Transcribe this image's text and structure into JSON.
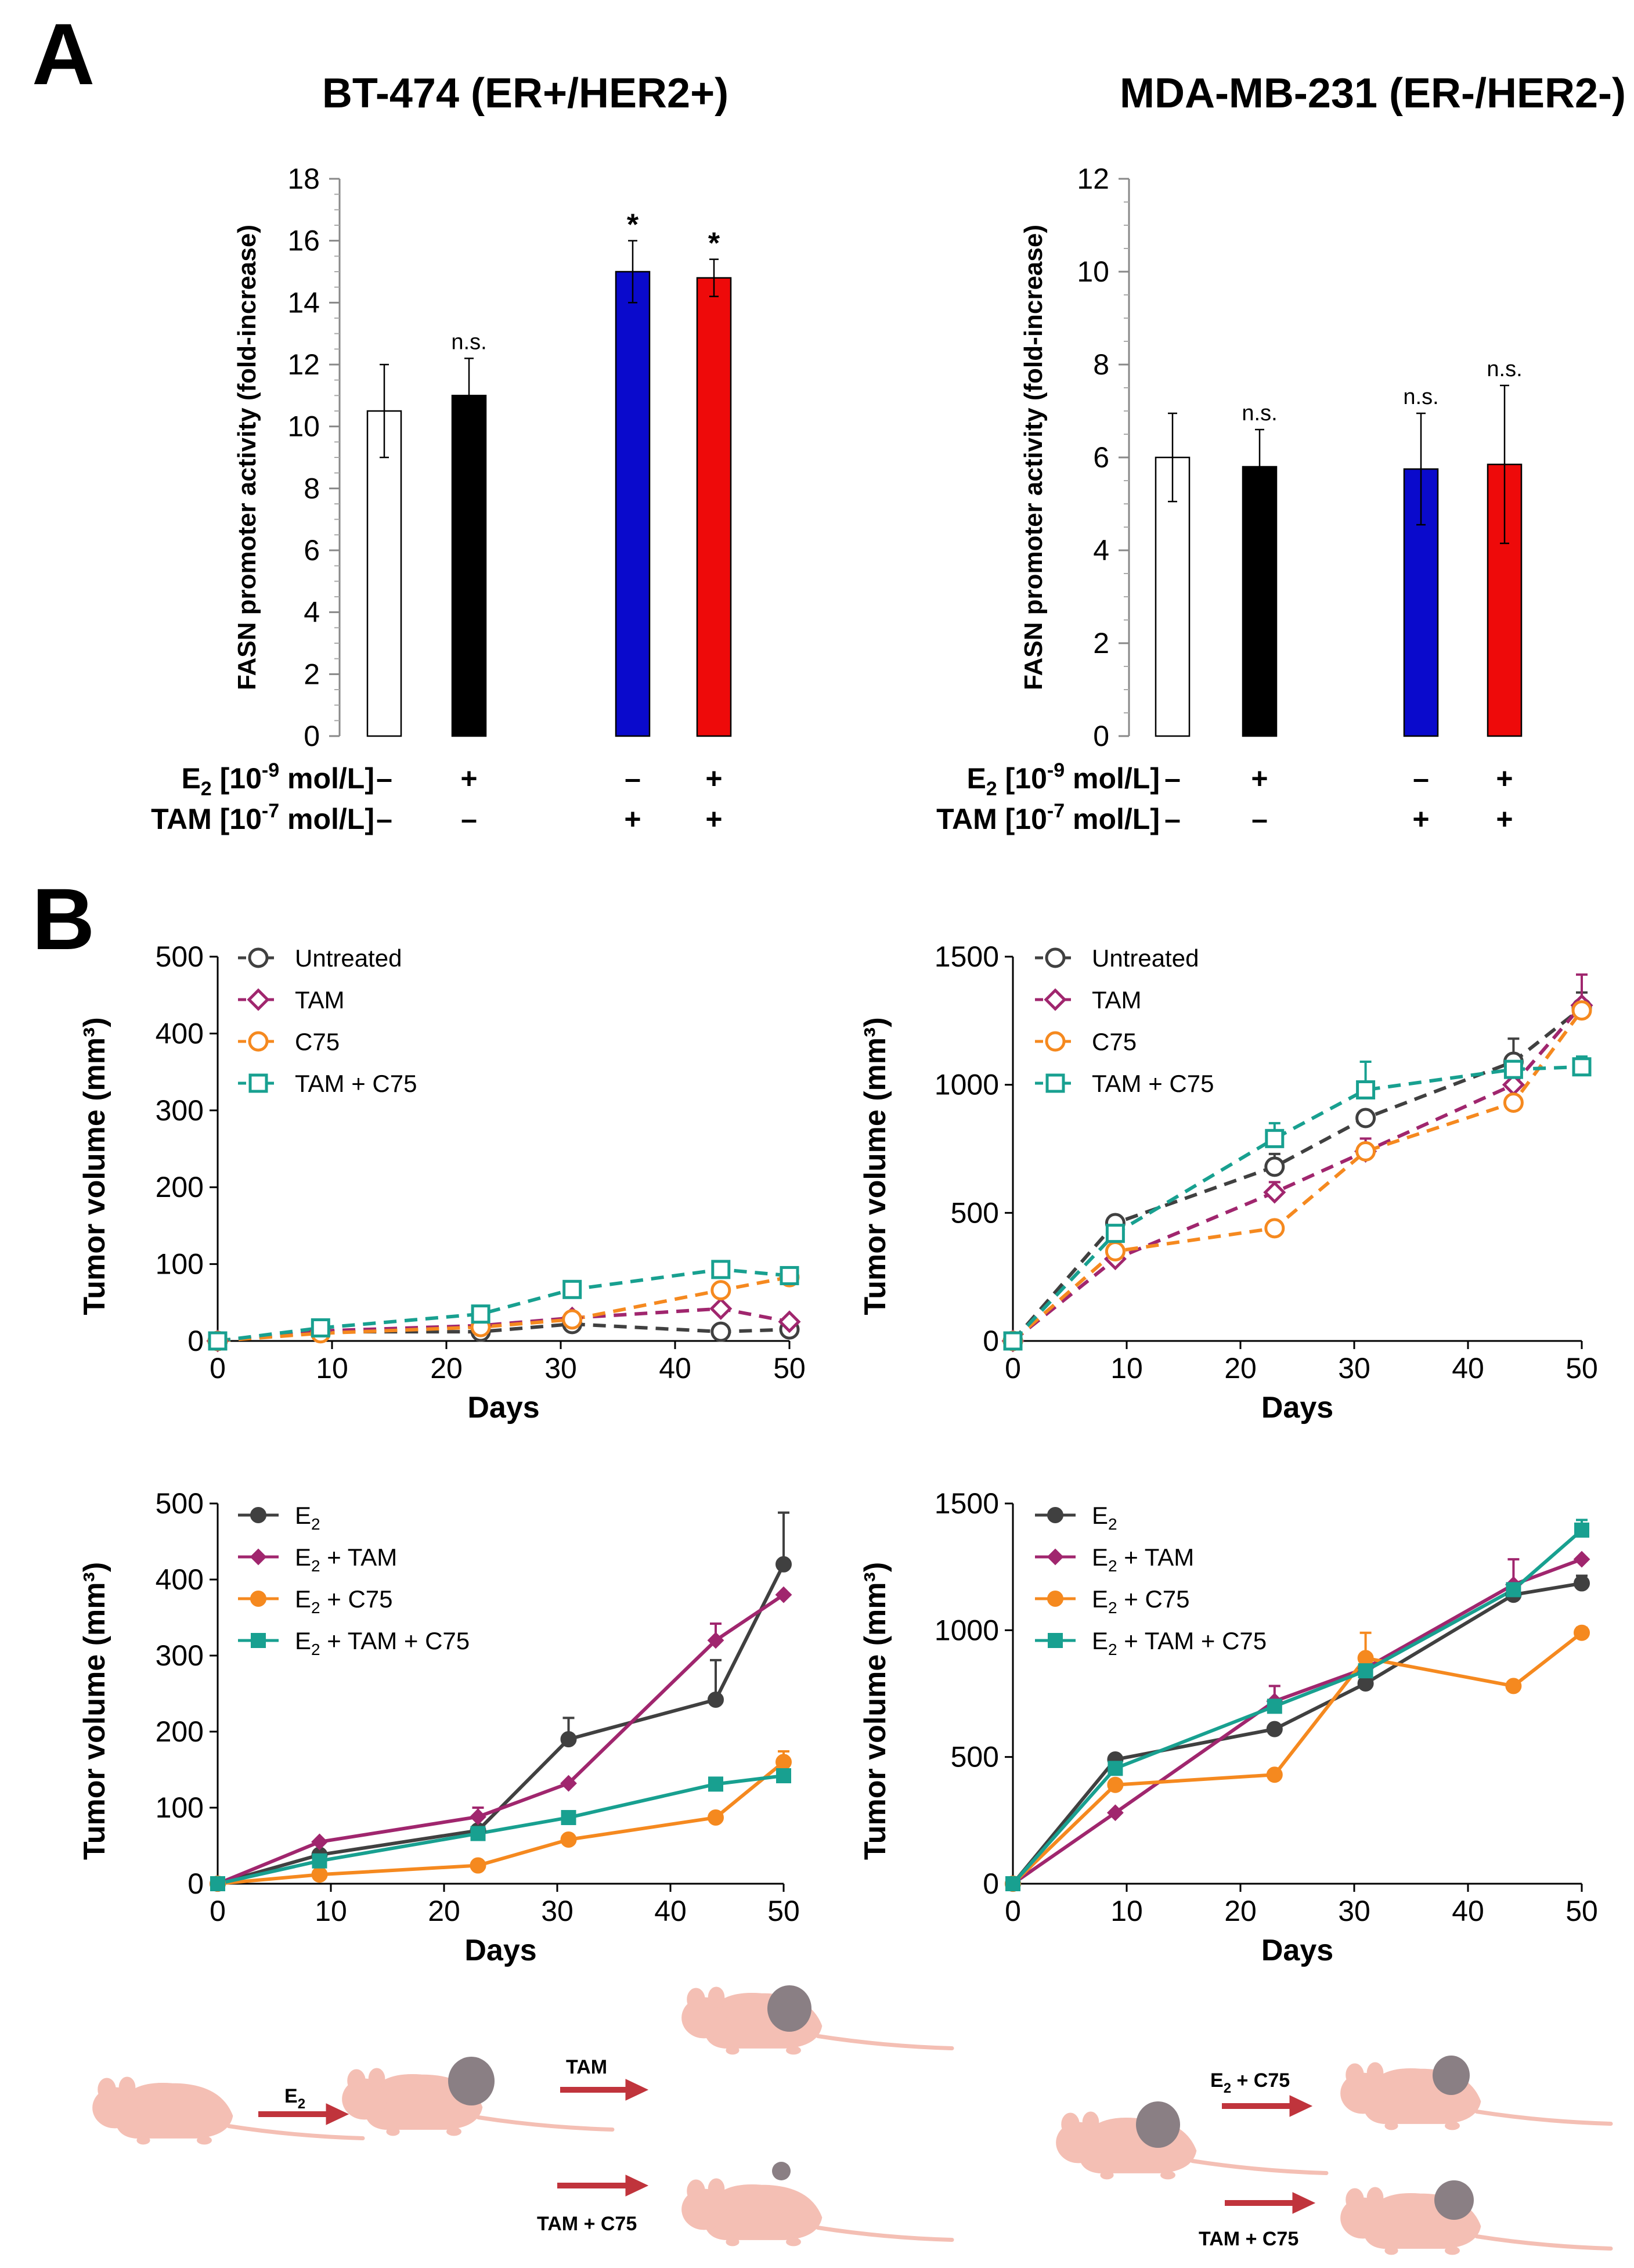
{
  "panel_a": {
    "label": "A",
    "row_labels": {
      "e2": {
        "main": "E",
        "sub": "2",
        "rest": " [10",
        "sup": "-9",
        "tail": " mol/L]"
      },
      "tam": {
        "main": "TAM [10",
        "sup": "-7",
        "tail": " mol/L]"
      }
    },
    "col_e2": [
      "–",
      "+",
      "–",
      "+"
    ],
    "col_tam": [
      "–",
      "–",
      "+",
      "+"
    ]
  },
  "panel_b": {
    "label": "B",
    "schema_left": {
      "step1": "E",
      "step1_sub": "2",
      "branch_top": "TAM",
      "branch_bottom": "TAM + C75"
    },
    "schema_right": {
      "branch_top": "E",
      "branch_top_sub": "2",
      "branch_top_rest": " + C75",
      "branch_bottom": "TAM + C75"
    }
  },
  "colors": {
    "untreated": "#404040",
    "tam": "#a0266e",
    "c75": "#f5891f",
    "combo": "#18a090",
    "blue": "#0a0acc",
    "red": "#ee0a0a",
    "arrow": "#c0343c",
    "mouse": "#f4bfb4",
    "tumor": "#8a7f84"
  },
  "chart_data": [
    {
      "id": "bt474",
      "type": "bar",
      "title": "BT-474 (ER+/HER2+)",
      "ylabel": "FASN promoter activity (fold-increase)",
      "ylim": [
        0,
        18
      ],
      "yticks": [
        "0",
        "2",
        "4",
        "6",
        "8",
        "10",
        "12",
        "14",
        "16",
        "18"
      ],
      "categories": [
        "E2– / TAM–",
        "E2+ / TAM–",
        "E2– / TAM+",
        "E2+ / TAM+"
      ],
      "values": [
        10.5,
        11.0,
        15.0,
        14.8
      ],
      "errors": [
        1.5,
        1.2,
        1.0,
        0.6
      ],
      "labels": [
        "",
        "n.s.",
        "*",
        "*"
      ]
    },
    {
      "id": "mda231",
      "type": "bar",
      "title": "MDA-MB-231 (ER-/HER2-)",
      "ylabel": "FASN promoter activity (fold-increase)",
      "ylim": [
        0,
        12
      ],
      "yticks": [
        "0",
        "2",
        "4",
        "6",
        "8",
        "10",
        "12"
      ],
      "categories": [
        "E2– / TAM–",
        "E2+ / TAM–",
        "E2– / TAM+",
        "E2+ / TAM+"
      ],
      "values": [
        6.0,
        5.8,
        5.75,
        5.85
      ],
      "errors": [
        0.95,
        0.8,
        1.2,
        1.7
      ],
      "labels": [
        "",
        "n.s.",
        "n.s.",
        "n.s."
      ]
    },
    {
      "id": "b1",
      "type": "line",
      "style": "dashed",
      "xlabel": "Days",
      "ylabel": "Tumor volume (mm³)",
      "xlim": [
        0,
        50
      ],
      "ylim": [
        0,
        500
      ],
      "xticks": [
        "0",
        "10",
        "20",
        "30",
        "40",
        "50"
      ],
      "yticks": [
        "0",
        "100",
        "200",
        "300",
        "400",
        "500"
      ],
      "x": [
        0,
        9,
        23,
        31,
        44,
        50
      ],
      "legend": [
        {
          "main": "Untreated",
          "sub": "",
          "rest": ""
        },
        {
          "main": "TAM",
          "sub": "",
          "rest": ""
        },
        {
          "main": "C75",
          "sub": "",
          "rest": ""
        },
        {
          "main": "TAM + C75",
          "sub": "",
          "rest": ""
        }
      ],
      "series": [
        {
          "name": "Untreated",
          "color": "untreated",
          "marker": "circle-open",
          "values": [
            0,
            12,
            12,
            22,
            12,
            15
          ],
          "errors": [
            0,
            0,
            0,
            0,
            0,
            0
          ]
        },
        {
          "name": "TAM",
          "color": "tam",
          "marker": "diamond-open",
          "values": [
            0,
            13,
            20,
            30,
            42,
            25
          ],
          "errors": [
            0,
            0,
            0,
            0,
            0,
            0
          ]
        },
        {
          "name": "C75",
          "color": "c75",
          "marker": "circle-open",
          "values": [
            0,
            10,
            18,
            28,
            66,
            83
          ],
          "errors": [
            0,
            0,
            0,
            0,
            0,
            0
          ]
        },
        {
          "name": "TAM + C75",
          "color": "combo",
          "marker": "square-open",
          "values": [
            0,
            17,
            35,
            67,
            93,
            85
          ],
          "errors": [
            0,
            0,
            0,
            0,
            0,
            0
          ]
        }
      ]
    },
    {
      "id": "b2",
      "type": "line",
      "style": "dashed",
      "xlabel": "Days",
      "ylabel": "Tumor volume (mm³)",
      "xlim": [
        0,
        50
      ],
      "ylim": [
        0,
        1500
      ],
      "xticks": [
        "0",
        "10",
        "20",
        "30",
        "40",
        "50"
      ],
      "yticks": [
        "0",
        "500",
        "1000",
        "1500"
      ],
      "x": [
        0,
        9,
        23,
        31,
        44,
        50
      ],
      "legend": [
        {
          "main": "Untreated",
          "sub": "",
          "rest": ""
        },
        {
          "main": "TAM",
          "sub": "",
          "rest": ""
        },
        {
          "main": "C75",
          "sub": "",
          "rest": ""
        },
        {
          "main": "TAM + C75",
          "sub": "",
          "rest": ""
        }
      ],
      "series": [
        {
          "name": "Untreated",
          "color": "untreated",
          "marker": "circle-open",
          "values": [
            0,
            460,
            680,
            870,
            1090,
            1300
          ],
          "errors": [
            0,
            0,
            50,
            0,
            90,
            60
          ]
        },
        {
          "name": "TAM",
          "color": "tam",
          "marker": "diamond-open",
          "values": [
            0,
            320,
            580,
            740,
            1000,
            1310
          ],
          "errors": [
            0,
            0,
            40,
            50,
            0,
            120
          ]
        },
        {
          "name": "C75",
          "color": "c75",
          "marker": "circle-open",
          "values": [
            0,
            350,
            440,
            740,
            930,
            1290
          ],
          "errors": [
            0,
            0,
            0,
            0,
            0,
            0
          ]
        },
        {
          "name": "TAM + C75",
          "color": "combo",
          "marker": "square-open",
          "values": [
            0,
            420,
            790,
            980,
            1060,
            1070
          ],
          "errors": [
            0,
            0,
            60,
            110,
            0,
            40
          ]
        }
      ]
    },
    {
      "id": "b3",
      "type": "line",
      "style": "solid",
      "xlabel": "Days",
      "ylabel": "Tumor volume (mm³)",
      "xlim": [
        0,
        50
      ],
      "ylim": [
        0,
        500
      ],
      "xticks": [
        "0",
        "10",
        "20",
        "30",
        "40",
        "50"
      ],
      "yticks": [
        "0",
        "100",
        "200",
        "300",
        "400",
        "500"
      ],
      "x": [
        0,
        9,
        23,
        31,
        44,
        50
      ],
      "legend": [
        {
          "main": "E",
          "sub": "2",
          "rest": ""
        },
        {
          "main": "E",
          "sub": "2",
          "rest": " + TAM"
        },
        {
          "main": "E",
          "sub": "2",
          "rest": " + C75"
        },
        {
          "main": "E",
          "sub": "2",
          "rest": " + TAM + C75"
        }
      ],
      "series": [
        {
          "name": "E2",
          "color": "untreated",
          "marker": "circle-filled",
          "values": [
            0,
            38,
            70,
            190,
            242,
            420
          ],
          "errors": [
            0,
            0,
            0,
            28,
            52,
            68
          ]
        },
        {
          "name": "E2 + TAM",
          "color": "tam",
          "marker": "diamond-filled",
          "values": [
            0,
            55,
            88,
            132,
            320,
            380
          ],
          "errors": [
            0,
            0,
            12,
            0,
            22,
            0
          ]
        },
        {
          "name": "E2 + C75",
          "color": "c75",
          "marker": "circle-filled",
          "values": [
            0,
            12,
            24,
            58,
            87,
            160
          ],
          "errors": [
            0,
            0,
            0,
            0,
            0,
            14
          ]
        },
        {
          "name": "E2 + TAM + C75",
          "color": "combo",
          "marker": "square-filled",
          "values": [
            0,
            30,
            66,
            87,
            131,
            142
          ],
          "errors": [
            0,
            0,
            0,
            0,
            0,
            0
          ]
        }
      ]
    },
    {
      "id": "b4",
      "type": "line",
      "style": "solid",
      "xlabel": "Days",
      "ylabel": "Tumor volume (mm³)",
      "xlim": [
        0,
        50
      ],
      "ylim": [
        0,
        1500
      ],
      "xticks": [
        "0",
        "10",
        "20",
        "30",
        "40",
        "50"
      ],
      "yticks": [
        "0",
        "500",
        "1000",
        "1500"
      ],
      "x": [
        0,
        9,
        23,
        31,
        44,
        50
      ],
      "legend": [
        {
          "main": "E",
          "sub": "2",
          "rest": ""
        },
        {
          "main": "E",
          "sub": "2",
          "rest": " + TAM"
        },
        {
          "main": "E",
          "sub": "2",
          "rest": " + C75"
        },
        {
          "main": "E",
          "sub": "2",
          "rest": " + TAM + C75"
        }
      ],
      "series": [
        {
          "name": "E2",
          "color": "untreated",
          "marker": "circle-filled",
          "values": [
            0,
            490,
            610,
            790,
            1140,
            1185
          ],
          "errors": [
            0,
            0,
            0,
            0,
            0,
            30
          ]
        },
        {
          "name": "E2 + TAM",
          "color": "tam",
          "marker": "diamond-filled",
          "values": [
            0,
            280,
            720,
            850,
            1180,
            1280
          ],
          "errors": [
            0,
            0,
            60,
            0,
            100,
            0
          ]
        },
        {
          "name": "E2 + C75",
          "color": "c75",
          "marker": "circle-filled",
          "values": [
            0,
            390,
            430,
            890,
            780,
            990
          ],
          "errors": [
            0,
            0,
            0,
            100,
            0,
            20
          ]
        },
        {
          "name": "E2 + TAM + C75",
          "color": "combo",
          "marker": "square-filled",
          "values": [
            0,
            455,
            700,
            840,
            1160,
            1395
          ],
          "errors": [
            0,
            0,
            0,
            0,
            0,
            40
          ]
        }
      ]
    }
  ]
}
